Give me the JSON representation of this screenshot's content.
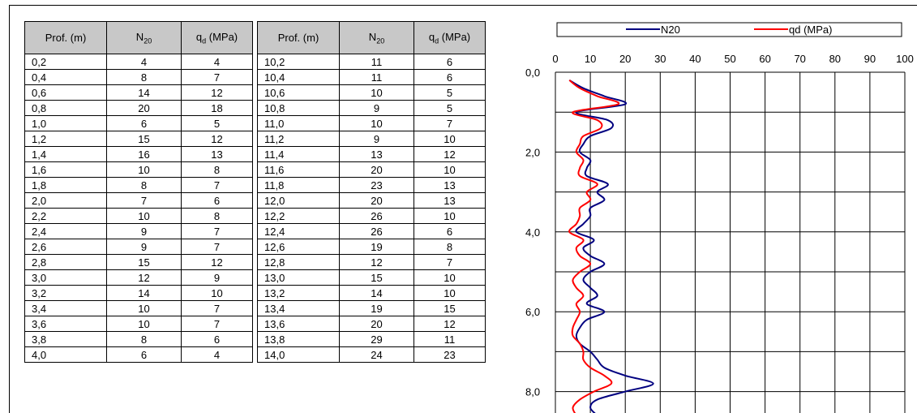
{
  "table": {
    "headers": {
      "depth": "Prof. (m)",
      "n20_base": "N",
      "n20_sub": "20",
      "qd_base": "q",
      "qd_sub": "d",
      "qd_unit": " (MPa)"
    },
    "left_rows": [
      [
        "0,2",
        "4",
        "4"
      ],
      [
        "0,4",
        "8",
        "7"
      ],
      [
        "0,6",
        "14",
        "12"
      ],
      [
        "0,8",
        "20",
        "18"
      ],
      [
        "1,0",
        "6",
        "5"
      ],
      [
        "1,2",
        "15",
        "12"
      ],
      [
        "1,4",
        "16",
        "13"
      ],
      [
        "1,6",
        "10",
        "8"
      ],
      [
        "1,8",
        "8",
        "7"
      ],
      [
        "2,0",
        "7",
        "6"
      ],
      [
        "2,2",
        "10",
        "8"
      ],
      [
        "2,4",
        "9",
        "7"
      ],
      [
        "2,6",
        "9",
        "7"
      ],
      [
        "2,8",
        "15",
        "12"
      ],
      [
        "3,0",
        "12",
        "9"
      ],
      [
        "3,2",
        "14",
        "10"
      ],
      [
        "3,4",
        "10",
        "7"
      ],
      [
        "3,6",
        "10",
        "7"
      ],
      [
        "3,8",
        "8",
        "6"
      ],
      [
        "4,0",
        "6",
        "4"
      ]
    ],
    "right_rows": [
      [
        "10,2",
        "11",
        "6"
      ],
      [
        "10,4",
        "11",
        "6"
      ],
      [
        "10,6",
        "10",
        "5"
      ],
      [
        "10,8",
        "9",
        "5"
      ],
      [
        "11,0",
        "10",
        "7"
      ],
      [
        "11,2",
        "9",
        "10"
      ],
      [
        "11,4",
        "13",
        "12"
      ],
      [
        "11,6",
        "20",
        "10"
      ],
      [
        "11,8",
        "23",
        "13"
      ],
      [
        "12,0",
        "20",
        "13"
      ],
      [
        "12,2",
        "26",
        "10"
      ],
      [
        "12,4",
        "26",
        "6"
      ],
      [
        "12,6",
        "19",
        "8"
      ],
      [
        "12,8",
        "12",
        "7"
      ],
      [
        "13,0",
        "15",
        "10"
      ],
      [
        "13,2",
        "14",
        "10"
      ],
      [
        "13,4",
        "19",
        "15"
      ],
      [
        "13,6",
        "20",
        "12"
      ],
      [
        "13,8",
        "29",
        "11"
      ],
      [
        "14,0",
        "24",
        "23"
      ]
    ]
  },
  "chart_data": {
    "type": "line",
    "legend_position": "top",
    "x_axis": {
      "range": [
        0,
        100
      ],
      "ticks": [
        "0",
        "10",
        "20",
        "30",
        "40",
        "50",
        "60",
        "70",
        "80",
        "90",
        "100"
      ],
      "position": "top"
    },
    "y_axis": {
      "range": [
        0,
        8.5
      ],
      "inverted": true,
      "tick_values": [
        0,
        2,
        4,
        6,
        8
      ],
      "ticks": [
        "0,0",
        "2,0",
        "4,0",
        "6,0",
        "8,0"
      ]
    },
    "grid": true,
    "series": [
      {
        "name": "N20",
        "color": "#000080",
        "points": [
          [
            4,
            0.2
          ],
          [
            8,
            0.4
          ],
          [
            14,
            0.6
          ],
          [
            20,
            0.8
          ],
          [
            6,
            1.0
          ],
          [
            15,
            1.2
          ],
          [
            16,
            1.4
          ],
          [
            10,
            1.6
          ],
          [
            8,
            1.8
          ],
          [
            7,
            2.0
          ],
          [
            10,
            2.2
          ],
          [
            9,
            2.4
          ],
          [
            9,
            2.6
          ],
          [
            15,
            2.8
          ],
          [
            12,
            3.0
          ],
          [
            14,
            3.2
          ],
          [
            10,
            3.4
          ],
          [
            10,
            3.6
          ],
          [
            8,
            3.8
          ],
          [
            6,
            4.0
          ],
          [
            11,
            4.2
          ],
          [
            8,
            4.4
          ],
          [
            10,
            4.6
          ],
          [
            14,
            4.8
          ],
          [
            10,
            5.0
          ],
          [
            8,
            5.2
          ],
          [
            10,
            5.4
          ],
          [
            12,
            5.6
          ],
          [
            9,
            5.8
          ],
          [
            14,
            6.0
          ],
          [
            9,
            6.2
          ],
          [
            7,
            6.4
          ],
          [
            6,
            6.6
          ],
          [
            7,
            6.8
          ],
          [
            10,
            7.0
          ],
          [
            12,
            7.2
          ],
          [
            14,
            7.4
          ],
          [
            20,
            7.6
          ],
          [
            28,
            7.8
          ],
          [
            20,
            8.0
          ],
          [
            12,
            8.2
          ],
          [
            10,
            8.4
          ],
          [
            12,
            8.6
          ]
        ]
      },
      {
        "name": "qd (MPa)",
        "color": "#ff0000",
        "points": [
          [
            4,
            0.2
          ],
          [
            7,
            0.4
          ],
          [
            12,
            0.6
          ],
          [
            18,
            0.8
          ],
          [
            5,
            1.0
          ],
          [
            12,
            1.2
          ],
          [
            13,
            1.4
          ],
          [
            8,
            1.6
          ],
          [
            7,
            1.8
          ],
          [
            6,
            2.0
          ],
          [
            8,
            2.2
          ],
          [
            7,
            2.4
          ],
          [
            7,
            2.6
          ],
          [
            12,
            2.8
          ],
          [
            9,
            3.0
          ],
          [
            10,
            3.2
          ],
          [
            7,
            3.4
          ],
          [
            7,
            3.6
          ],
          [
            6,
            3.8
          ],
          [
            4,
            4.0
          ],
          [
            8,
            4.2
          ],
          [
            6,
            4.4
          ],
          [
            7,
            4.6
          ],
          [
            10,
            4.8
          ],
          [
            7,
            5.0
          ],
          [
            5,
            5.2
          ],
          [
            6,
            5.4
          ],
          [
            8,
            5.6
          ],
          [
            6,
            5.8
          ],
          [
            7,
            6.0
          ],
          [
            6,
            6.2
          ],
          [
            5,
            6.4
          ],
          [
            5,
            6.6
          ],
          [
            7,
            6.8
          ],
          [
            8,
            7.0
          ],
          [
            8,
            7.2
          ],
          [
            10,
            7.4
          ],
          [
            14,
            7.6
          ],
          [
            16,
            7.8
          ],
          [
            11,
            8.0
          ],
          [
            7,
            8.2
          ],
          [
            5,
            8.4
          ],
          [
            6,
            8.6
          ]
        ]
      }
    ]
  }
}
